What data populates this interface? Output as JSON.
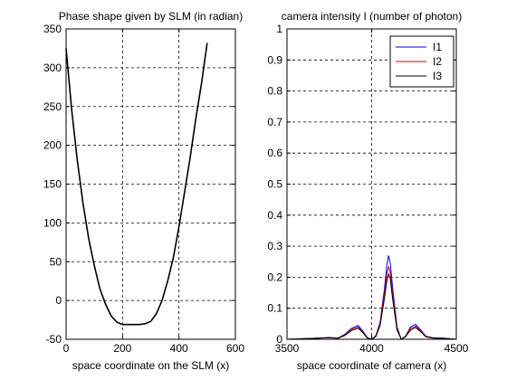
{
  "chart_data": [
    {
      "type": "line",
      "title": "Phase shape given by SLM (in radian)",
      "xlabel": "space coordinate on the SLM (x)",
      "ylabel": "",
      "xlim": [
        0,
        600
      ],
      "ylim": [
        -50,
        350
      ],
      "xticks": [
        0,
        200,
        400,
        600
      ],
      "yticks": [
        -50,
        0,
        50,
        100,
        150,
        200,
        250,
        300,
        350
      ],
      "grid": true,
      "series": [
        {
          "color": "#000000",
          "x": [
            0,
            20,
            40,
            60,
            80,
            100,
            120,
            140,
            160,
            180,
            200,
            220,
            240,
            260,
            280,
            300,
            320,
            340,
            360,
            380,
            400,
            420,
            440,
            460,
            480,
            500
          ],
          "y": [
            325,
            245,
            180,
            125,
            80,
            45,
            15,
            -5,
            -20,
            -28,
            -31,
            -31,
            -31,
            -31,
            -30,
            -27,
            -17,
            0,
            25,
            55,
            95,
            140,
            185,
            235,
            280,
            332
          ]
        }
      ]
    },
    {
      "type": "line",
      "title": "camera intensity I (number of photon)",
      "xlabel": "space coordinate of camera (x)",
      "ylabel": "",
      "xlim": [
        3500,
        4500
      ],
      "ylim": [
        0,
        1
      ],
      "xticks": [
        3500,
        4000,
        4500
      ],
      "yticks": [
        0,
        0.1,
        0.2,
        0.3,
        0.4,
        0.5,
        0.6,
        0.7,
        0.8,
        0.9,
        1
      ],
      "grid": true,
      "legend_position": "top-right",
      "series": [
        {
          "name": "I1",
          "color": "#0000ff",
          "x": [
            3500,
            3650,
            3750,
            3800,
            3840,
            3880,
            3920,
            3950,
            3975,
            4000,
            4025,
            4050,
            4075,
            4090,
            4100,
            4110,
            4125,
            4150,
            4175,
            4200,
            4230,
            4260,
            4290,
            4320,
            4360,
            4420,
            4500
          ],
          "y": [
            0.0,
            0.003,
            0.006,
            0.004,
            0.015,
            0.035,
            0.045,
            0.025,
            0.005,
            0.0,
            0.012,
            0.055,
            0.16,
            0.24,
            0.27,
            0.245,
            0.16,
            0.04,
            0.0,
            0.01,
            0.04,
            0.048,
            0.03,
            0.01,
            0.005,
            0.004,
            0.0
          ]
        },
        {
          "name": "I2",
          "color": "#cc0000",
          "x": [
            3500,
            3650,
            3750,
            3800,
            3840,
            3880,
            3920,
            3950,
            3975,
            4000,
            4025,
            4050,
            4075,
            4090,
            4100,
            4110,
            4125,
            4150,
            4175,
            4200,
            4230,
            4260,
            4290,
            4320,
            4360,
            4420,
            4500
          ],
          "y": [
            0.0,
            0.003,
            0.005,
            0.004,
            0.013,
            0.032,
            0.04,
            0.022,
            0.004,
            0.0,
            0.01,
            0.05,
            0.145,
            0.21,
            0.235,
            0.215,
            0.14,
            0.035,
            0.0,
            0.009,
            0.035,
            0.042,
            0.027,
            0.009,
            0.004,
            0.003,
            0.0
          ]
        },
        {
          "name": "I3",
          "color": "#000000",
          "x": [
            3500,
            3650,
            3750,
            3800,
            3840,
            3880,
            3920,
            3950,
            3975,
            4000,
            4025,
            4050,
            4075,
            4090,
            4100,
            4110,
            4125,
            4150,
            4175,
            4200,
            4230,
            4260,
            4290,
            4320,
            4360,
            4420,
            4500
          ],
          "y": [
            0.0,
            0.003,
            0.005,
            0.003,
            0.012,
            0.028,
            0.036,
            0.02,
            0.004,
            0.0,
            0.009,
            0.045,
            0.13,
            0.19,
            0.21,
            0.195,
            0.125,
            0.03,
            0.0,
            0.008,
            0.03,
            0.038,
            0.024,
            0.008,
            0.004,
            0.003,
            0.0
          ]
        }
      ]
    }
  ]
}
